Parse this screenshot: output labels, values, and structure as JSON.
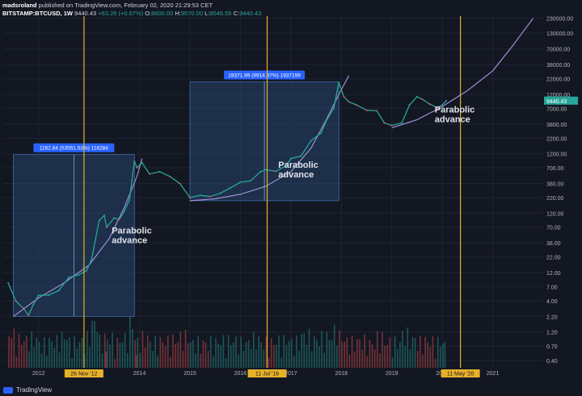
{
  "header": {
    "publisher": "madsroland",
    "published_text": "published on TradingView.com, February 02, 2020 21:29:53 CET",
    "symbol": "BITSTAMP:BTCUSD, 1W",
    "last": "9440.43",
    "change": "+63.26 (+0.67%)",
    "ohlc": {
      "o_label": "O:",
      "o": "8600.00",
      "h_label": "H:",
      "h": "9570.00",
      "l_label": "L:",
      "l": "8546.55",
      "c_label": "C:",
      "c": "9440.43"
    }
  },
  "footer": {
    "brand": "TradingView"
  },
  "colors": {
    "bg": "#131722",
    "grid": "#1e2433",
    "up": "#26a69a",
    "down": "#ef5350",
    "vline": "#e8b12a",
    "curve": "#9f8fd6",
    "box": "#2a4e7a",
    "tag": "#2962ff"
  },
  "chart_data": {
    "type": "line",
    "yscale": "log",
    "ylim": [
      0.3,
      250000
    ],
    "xlim": [
      2011.3,
      2022.0
    ],
    "y_ticks": [
      "230000.00",
      "130000.00",
      "70000.00",
      "38000.00",
      "22000.00",
      "12000.00",
      "7000.00",
      "3800.00",
      "2200.00",
      "1200.00",
      "700.00",
      "380.00",
      "220.00",
      "120.00",
      "70.00",
      "38.00",
      "22.00",
      "12.00",
      "7.00",
      "4.00",
      "2.20",
      "1.20",
      "0.70",
      "0.40"
    ],
    "x_ticks": [
      "2012",
      "2014",
      "2015",
      "2016",
      "2017",
      "2018",
      "2019",
      "2020",
      "2021"
    ],
    "vertical_markers": [
      {
        "label": "26 Nov '12",
        "x": 2012.9
      },
      {
        "label": "11 Jul '16",
        "x": 2016.53
      },
      {
        "label": "11 May '20",
        "x": 2020.36
      }
    ],
    "current_price": "9440.43",
    "measure_boxes": [
      {
        "label": "1162.84 (53551.53%) 116284",
        "x0": 2011.5,
        "x1": 2013.9,
        "y0": 2.2,
        "y1": 1165
      },
      {
        "label": "19371.99 (9914.87%) 1937199",
        "x0": 2015.0,
        "x1": 2017.95,
        "y0": 195,
        "y1": 19560
      }
    ],
    "annotations": [
      {
        "text": "Parabolic advance",
        "x": 2013.45,
        "y": 55
      },
      {
        "text": "Parabolic advance",
        "x": 2016.75,
        "y": 700
      },
      {
        "text": "Parabolic advance",
        "x": 2019.85,
        "y": 6000
      }
    ],
    "curves": [
      {
        "name": "",
        "points": [
          [
            2011.5,
            2.2
          ],
          [
            2012.0,
            4.5
          ],
          [
            2012.5,
            8
          ],
          [
            2013.0,
            16
          ],
          [
            2013.4,
            45
          ],
          [
            2013.7,
            150
          ],
          [
            2013.95,
            500
          ],
          [
            2014.05,
            1000
          ]
        ]
      },
      {
        "name": "",
        "points": [
          [
            2015.0,
            195
          ],
          [
            2015.5,
            210
          ],
          [
            2016.0,
            250
          ],
          [
            2016.5,
            340
          ],
          [
            2017.0,
            600
          ],
          [
            2017.4,
            1500
          ],
          [
            2017.7,
            4500
          ],
          [
            2017.95,
            12000
          ],
          [
            2018.15,
            25000
          ]
        ]
      },
      {
        "name": "",
        "points": [
          [
            2019.0,
            3300
          ],
          [
            2019.5,
            4500
          ],
          [
            2020.0,
            7500
          ],
          [
            2020.5,
            14000
          ],
          [
            2021.0,
            30000
          ],
          [
            2021.4,
            80000
          ],
          [
            2021.8,
            230000
          ]
        ]
      }
    ],
    "price": [
      [
        2011.4,
        8
      ],
      [
        2011.55,
        4
      ],
      [
        2011.7,
        3
      ],
      [
        2011.8,
        2.3
      ],
      [
        2011.9,
        3.5
      ],
      [
        2012.0,
        5
      ],
      [
        2012.2,
        5
      ],
      [
        2012.4,
        6
      ],
      [
        2012.6,
        10
      ],
      [
        2012.8,
        11
      ],
      [
        2012.95,
        13
      ],
      [
        2013.05,
        20
      ],
      [
        2013.2,
        90
      ],
      [
        2013.3,
        110
      ],
      [
        2013.35,
        70
      ],
      [
        2013.5,
        100
      ],
      [
        2013.6,
        95
      ],
      [
        2013.7,
        130
      ],
      [
        2013.8,
        200
      ],
      [
        2013.9,
        900
      ],
      [
        2013.95,
        700
      ],
      [
        2014.05,
        850
      ],
      [
        2014.2,
        550
      ],
      [
        2014.4,
        600
      ],
      [
        2014.6,
        500
      ],
      [
        2014.8,
        380
      ],
      [
        2015.0,
        220
      ],
      [
        2015.2,
        240
      ],
      [
        2015.4,
        230
      ],
      [
        2015.6,
        260
      ],
      [
        2015.8,
        320
      ],
      [
        2016.0,
        400
      ],
      [
        2016.2,
        420
      ],
      [
        2016.4,
        600
      ],
      [
        2016.5,
        650
      ],
      [
        2016.7,
        610
      ],
      [
        2016.9,
        750
      ],
      [
        2017.0,
        1000
      ],
      [
        2017.2,
        1100
      ],
      [
        2017.4,
        2000
      ],
      [
        2017.6,
        2700
      ],
      [
        2017.7,
        4300
      ],
      [
        2017.85,
        7000
      ],
      [
        2017.95,
        19000
      ],
      [
        2018.05,
        11000
      ],
      [
        2018.15,
        9000
      ],
      [
        2018.3,
        8000
      ],
      [
        2018.5,
        6500
      ],
      [
        2018.7,
        6400
      ],
      [
        2018.85,
        4000
      ],
      [
        2019.0,
        3600
      ],
      [
        2019.2,
        4000
      ],
      [
        2019.35,
        8000
      ],
      [
        2019.5,
        11000
      ],
      [
        2019.6,
        10000
      ],
      [
        2019.75,
        8300
      ],
      [
        2019.9,
        7200
      ],
      [
        2020.0,
        8000
      ],
      [
        2020.08,
        9440
      ]
    ],
    "volume_scale_max": 1
  }
}
